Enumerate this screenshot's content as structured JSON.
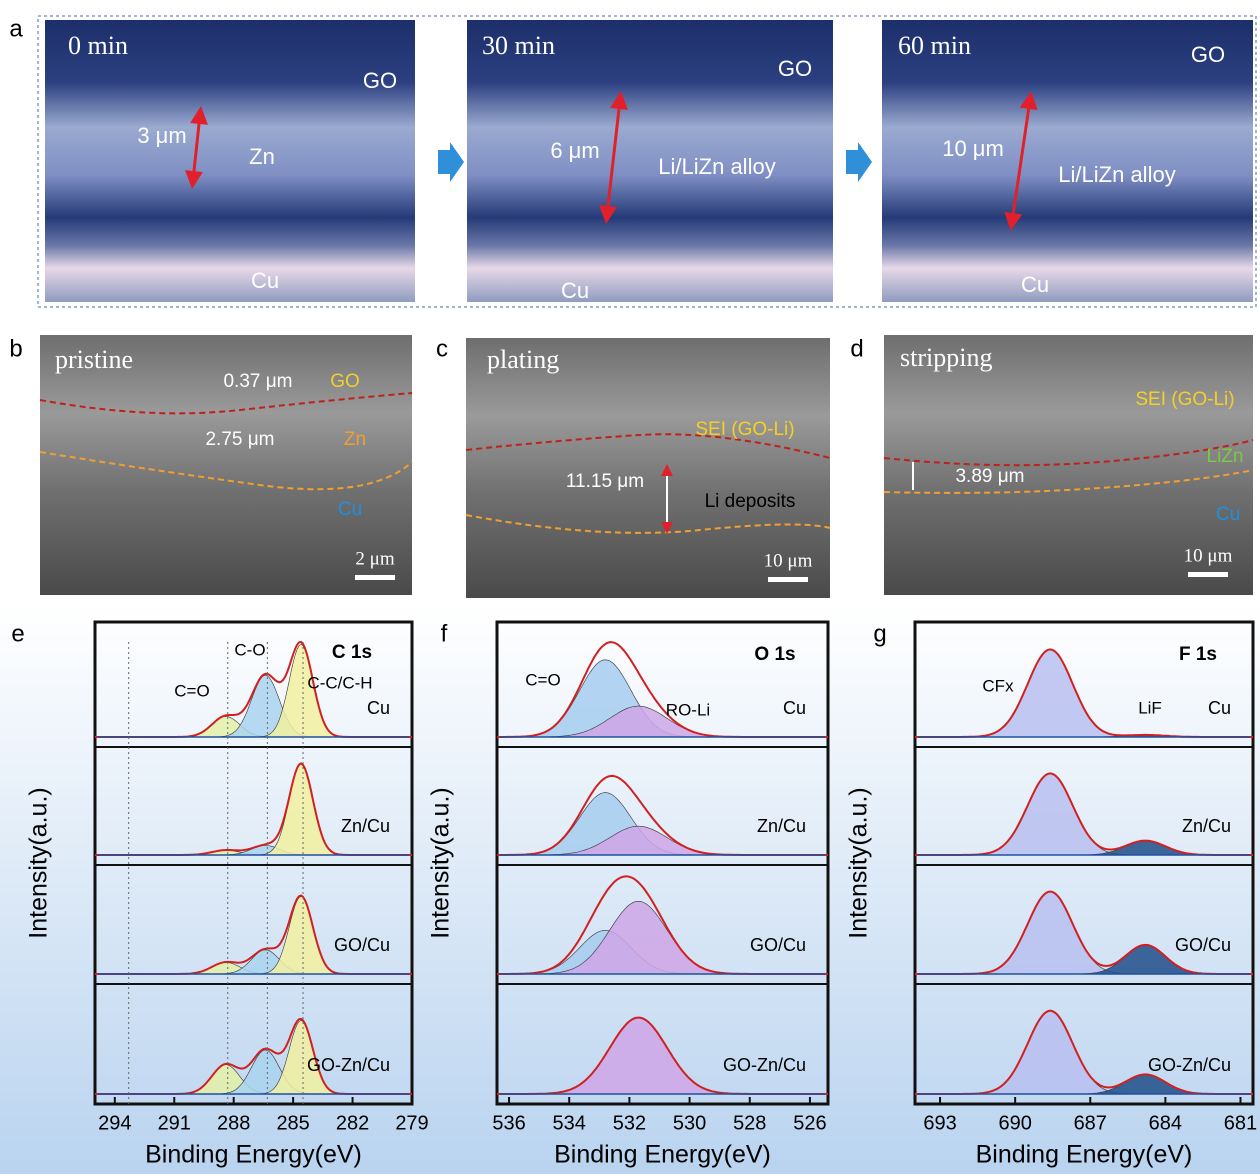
{
  "photos": [
    {
      "label": "a",
      "time": "0 min",
      "labels": [
        "GO",
        "3 μm",
        "Zn",
        "Cu"
      ]
    },
    {
      "time": "30 min",
      "labels": [
        "GO",
        "6 μm",
        "Li/LiZn alloy",
        "Cu"
      ]
    },
    {
      "time": "60 min",
      "labels": [
        "GO",
        "10 μm",
        "Li/LiZn alloy",
        "Cu"
      ]
    }
  ],
  "sem": [
    {
      "label": "b",
      "title": "pristine",
      "labels": [
        "0.37 μm",
        "GO",
        "2.75 μm",
        "Zn",
        "Cu"
      ],
      "scale_bar": "2 μm"
    },
    {
      "label": "c",
      "title": "plating",
      "labels": [
        "SEI (GO-Li)",
        "11.15 μm",
        "Li deposits"
      ],
      "scale_bar": "10 μm"
    },
    {
      "label": "d",
      "title": "stripping",
      "labels": [
        "SEI (GO-Li)",
        "LiZn",
        "3.89 μm",
        "Cu"
      ],
      "scale_bar": "10 μm"
    }
  ],
  "xps": [
    {
      "label": "e",
      "title": "C 1s",
      "xlabel": "Binding Energy(eV)",
      "ylabel": "Intensity(a.u.)",
      "xlim": [
        295,
        279
      ],
      "xticks": [
        294,
        291,
        288,
        285,
        282,
        279
      ],
      "peak_labels": [
        "C=O",
        "C-O",
        "C-C/C-H"
      ],
      "samples": [
        "Cu",
        "Zn/Cu",
        "GO/Cu",
        "GO-Zn/Cu"
      ]
    },
    {
      "label": "f",
      "title": "O 1s",
      "xlabel": "Binding Energy(eV)",
      "ylabel": "Intensity(a.u.)",
      "xlim": [
        536.4,
        525.4
      ],
      "xticks": [
        536,
        534,
        532,
        530,
        528,
        526
      ],
      "peak_labels": [
        "C=O",
        "RO-Li"
      ],
      "samples": [
        "Cu",
        "Zn/Cu",
        "GO/Cu",
        "GO-Zn/Cu"
      ]
    },
    {
      "label": "g",
      "title": "F 1s",
      "xlabel": "Binding Energy(eV)",
      "ylabel": "Intensity(a.u.)",
      "xlim": [
        694,
        680.5
      ],
      "xticks": [
        693,
        690,
        687,
        684,
        681
      ],
      "peak_labels": [
        "CFx",
        "LiF"
      ],
      "samples": [
        "Cu",
        "Zn/Cu",
        "GO/Cu",
        "GO-Zn/Cu"
      ]
    }
  ]
}
